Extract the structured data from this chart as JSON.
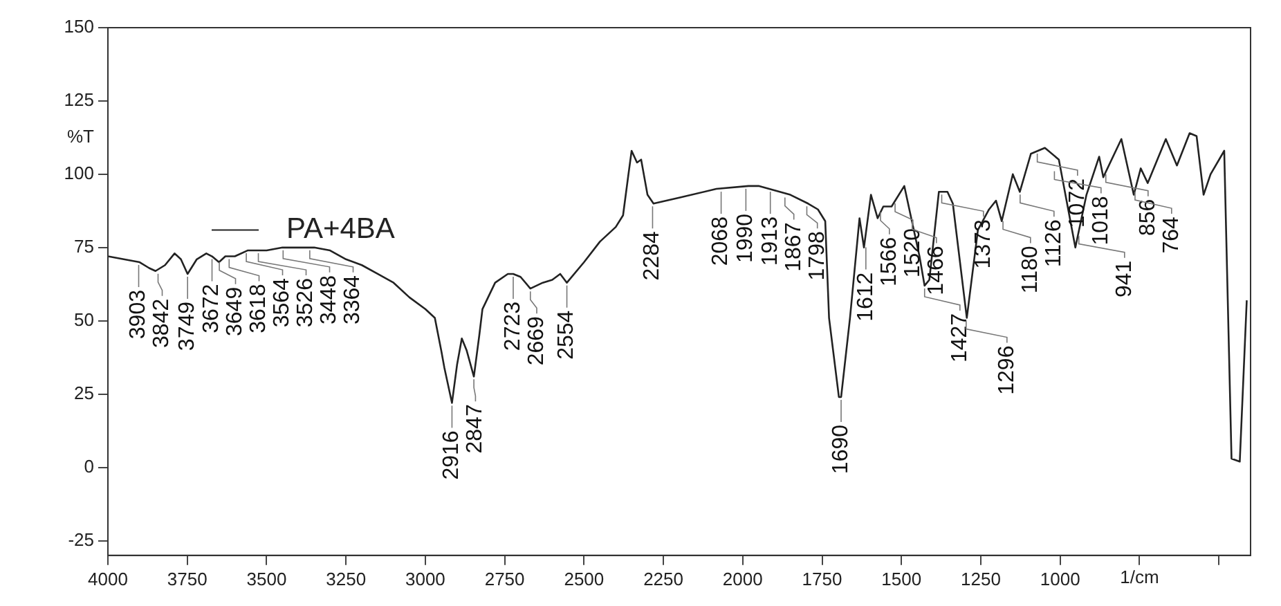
{
  "chart_data": {
    "type": "line",
    "xlabel": "1/cm",
    "ylabel": "%T",
    "xlim": [
      4000,
      400
    ],
    "ylim": [
      -30,
      150
    ],
    "xticks": [
      4000,
      3750,
      3500,
      3250,
      3000,
      2750,
      2500,
      2250,
      2000,
      1750,
      1500,
      1250,
      1000,
      {
        "value": 750,
        "label": null
      },
      {
        "value": 500,
        "label": null
      }
    ],
    "yticks": [
      -25,
      0,
      25,
      50,
      75,
      100,
      125,
      150
    ],
    "grid": false,
    "legend": "top left",
    "marker": "none",
    "line_style": "solid",
    "series": [
      {
        "name": "PA+4BA",
        "color": "#222222",
        "x": [
          4000,
          3950,
          3900,
          3870,
          3850,
          3820,
          3790,
          3770,
          3749,
          3720,
          3690,
          3672,
          3650,
          3630,
          3600,
          3560,
          3500,
          3450,
          3400,
          3350,
          3300,
          3250,
          3200,
          3150,
          3100,
          3050,
          3000,
          2970,
          2950,
          2940,
          2916,
          2900,
          2885,
          2870,
          2847,
          2830,
          2820,
          2780,
          2740,
          2723,
          2700,
          2669,
          2630,
          2600,
          2575,
          2554,
          2500,
          2450,
          2400,
          2377,
          2360,
          2350,
          2333,
          2320,
          2300,
          2281,
          2200,
          2083,
          1982,
          1950,
          1850,
          1794,
          1763,
          1740,
          1728,
          1697,
          1690,
          1662,
          1632,
          1618,
          1596,
          1575,
          1557,
          1531,
          1491,
          1469,
          1443,
          1427,
          1412,
          1382,
          1355,
          1338,
          1294,
          1259,
          1224,
          1202,
          1184,
          1149,
          1127,
          1092,
          1048,
          1004,
          952,
          917,
          877,
          864,
          807,
          768,
          746,
          724,
          667,
          632,
          592,
          570,
          548,
          526,
          483,
          460,
          434,
          412
        ],
        "values": [
          72,
          71,
          70,
          68,
          67,
          69,
          73,
          71,
          66,
          71,
          73,
          72,
          70,
          72,
          72,
          74,
          74,
          75,
          75,
          75,
          74,
          71,
          69,
          66,
          63,
          58,
          54,
          51,
          40,
          34,
          22,
          35,
          44,
          40,
          31,
          45,
          54,
          63,
          66,
          66,
          65,
          61,
          63,
          64,
          66,
          63,
          70,
          77,
          82,
          86,
          100,
          108,
          104,
          105,
          93,
          90,
          92,
          95,
          96,
          96,
          93,
          90,
          88,
          84,
          51,
          24,
          24,
          51,
          85,
          75,
          93,
          85,
          89,
          89,
          96,
          85,
          72,
          62,
          64,
          94,
          94,
          90,
          51,
          81,
          88,
          91,
          84,
          100,
          94,
          107,
          109,
          105,
          75,
          93,
          106,
          99,
          112,
          93,
          102,
          97,
          112,
          103,
          114,
          113,
          93,
          100,
          108,
          3,
          2,
          57
        ]
      }
    ],
    "annotations": [
      {
        "text": "3903",
        "x": 3903,
        "y": 70
      },
      {
        "text": "3842",
        "x": 3842,
        "y": 67
      },
      {
        "text": "3749",
        "x": 3749,
        "y": 66
      },
      {
        "text": "3672",
        "x": 3672,
        "y": 72
      },
      {
        "text": "3649",
        "x": 3649,
        "y": 71
      },
      {
        "text": "3618",
        "x": 3618,
        "y": 72
      },
      {
        "text": "3564",
        "x": 3564,
        "y": 74
      },
      {
        "text": "3526",
        "x": 3526,
        "y": 74
      },
      {
        "text": "3448",
        "x": 3448,
        "y": 75
      },
      {
        "text": "3364",
        "x": 3364,
        "y": 75
      },
      {
        "text": "2916",
        "x": 2916,
        "y": 22
      },
      {
        "text": "2847",
        "x": 2847,
        "y": 31
      },
      {
        "text": "2723",
        "x": 2723,
        "y": 66
      },
      {
        "text": "2669",
        "x": 2669,
        "y": 61
      },
      {
        "text": "2554",
        "x": 2554,
        "y": 63
      },
      {
        "text": "2284",
        "x": 2284,
        "y": 90
      },
      {
        "text": "2068",
        "x": 2068,
        "y": 95
      },
      {
        "text": "1990",
        "x": 1990,
        "y": 96
      },
      {
        "text": "1913",
        "x": 1913,
        "y": 95
      },
      {
        "text": "1867",
        "x": 1867,
        "y": 93
      },
      {
        "text": "1798",
        "x": 1798,
        "y": 90
      },
      {
        "text": "1690",
        "x": 1690,
        "y": 24
      },
      {
        "text": "1612",
        "x": 1612,
        "y": 76
      },
      {
        "text": "1566",
        "x": 1566,
        "y": 88
      },
      {
        "text": "1520",
        "x": 1520,
        "y": 91
      },
      {
        "text": "1466",
        "x": 1466,
        "y": 85
      },
      {
        "text": "1427",
        "x": 1427,
        "y": 62
      },
      {
        "text": "1373",
        "x": 1373,
        "y": 94
      },
      {
        "text": "1296",
        "x": 1296,
        "y": 51
      },
      {
        "text": "1180",
        "x": 1180,
        "y": 85
      },
      {
        "text": "1126",
        "x": 1126,
        "y": 94
      },
      {
        "text": "1072",
        "x": 1072,
        "y": 108
      },
      {
        "text": "1018",
        "x": 1018,
        "y": 102
      },
      {
        "text": "941",
        "x": 941,
        "y": 80
      },
      {
        "text": "856",
        "x": 856,
        "y": 101
      },
      {
        "text": "764",
        "x": 764,
        "y": 95
      }
    ]
  }
}
